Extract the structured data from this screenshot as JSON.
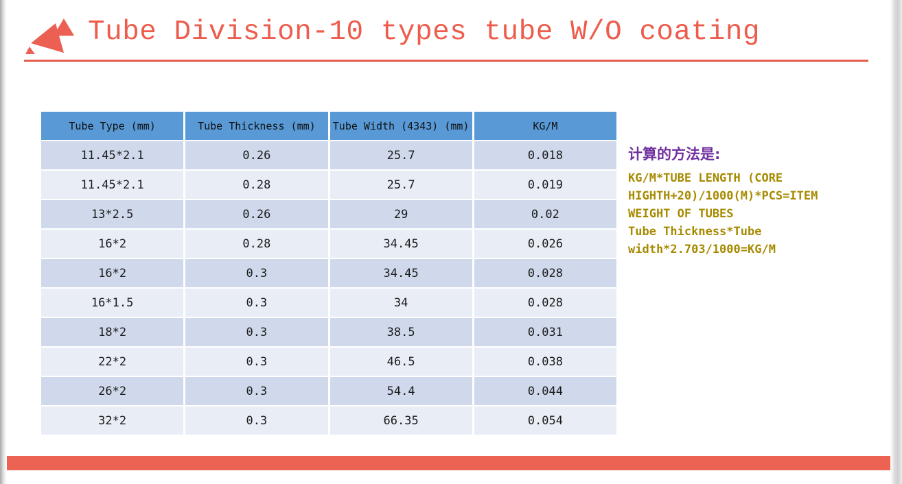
{
  "slide": {
    "title": "Tube Division-10 types tube W/O coating",
    "title_color": "#ED5C4C",
    "accent_color": "#EC6353",
    "divider_color": "#E75B4B"
  },
  "logo": {
    "icon": "red-triangles-logo",
    "color": "#EB6052"
  },
  "table": {
    "columns": [
      "Tube Type (mm)",
      "Tube Thickness (mm)",
      "Tube Width (4343) (mm)",
      "KG/M"
    ],
    "rows": [
      [
        "11.45*2.1",
        "0.26",
        "25.7",
        "0.018"
      ],
      [
        "11.45*2.1",
        "0.28",
        "25.7",
        "0.019"
      ],
      [
        "13*2.5",
        "0.26",
        "29",
        "0.02"
      ],
      [
        "16*2",
        "0.28",
        "34.45",
        "0.026"
      ],
      [
        "16*2",
        "0.3",
        "34.45",
        "0.028"
      ],
      [
        "16*1.5",
        "0.3",
        "34",
        "0.028"
      ],
      [
        "18*2",
        "0.3",
        "38.5",
        "0.031"
      ],
      [
        "22*2",
        "0.3",
        "46.5",
        "0.038"
      ],
      [
        "26*2",
        "0.3",
        "54.4",
        "0.044"
      ],
      [
        "32*2",
        "0.3",
        "66.35",
        "0.054"
      ]
    ],
    "header_bg": "#5899D6",
    "row_bg_dark": "#CFD9EB",
    "row_bg_light": "#E9EDF6"
  },
  "notes": {
    "heading": "计算的方法是:",
    "heading_color": "#7030A0",
    "formula_color": "#A68A00",
    "formula_lines": [
      "KG/M*TUBE LENGTH (CORE",
      "HIGHTH+20)/1000(M)*PCS=ITEM",
      "WEIGHT OF TUBES",
      "Tube Thickness*Tube",
      "width*2.703/1000=KG/M"
    ]
  }
}
